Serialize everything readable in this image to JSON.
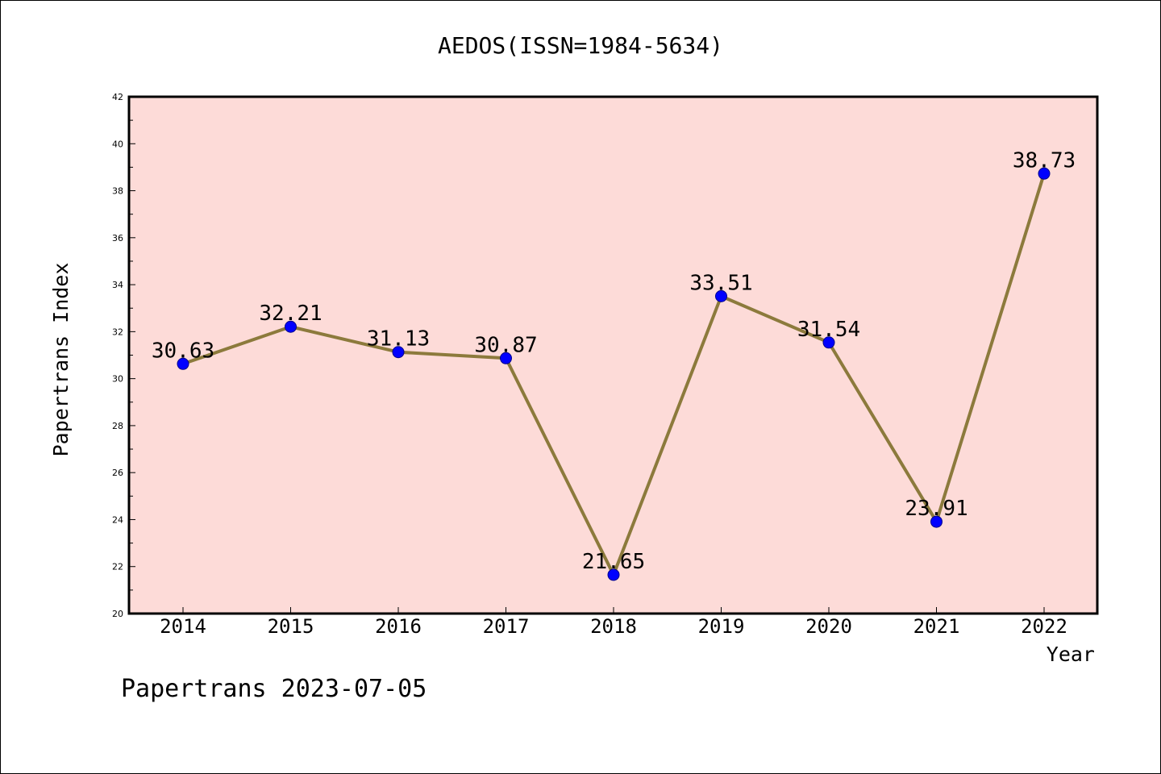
{
  "chart_data": {
    "type": "line",
    "title": "AEDOS(ISSN=1984-5634)",
    "xlabel": "Year",
    "ylabel": "Papertrans Index",
    "categories": [
      "2014",
      "2015",
      "2016",
      "2017",
      "2018",
      "2019",
      "2020",
      "2021",
      "2022"
    ],
    "values": [
      30.63,
      32.21,
      31.13,
      30.87,
      21.65,
      33.51,
      31.54,
      23.91,
      38.73
    ],
    "data_labels": [
      "30.63",
      "32.21",
      "31.13",
      "30.87",
      "21.65",
      "33.51",
      "31.54",
      "23.91",
      "38.73"
    ],
    "ylim": [
      20,
      42
    ],
    "yticks": [
      "20",
      "22",
      "24",
      "26",
      "28",
      "30",
      "32",
      "34",
      "36",
      "38",
      "40",
      "42"
    ],
    "grid": false,
    "legend": "none"
  },
  "footer": {
    "text": "Papertrans 2023-07-05"
  },
  "colors": {
    "plot_background": "#fddbd8",
    "line": "#8c7a3c",
    "marker_fill": "#0000ff",
    "marker_edge": "#00008b",
    "axis": "#000000"
  }
}
